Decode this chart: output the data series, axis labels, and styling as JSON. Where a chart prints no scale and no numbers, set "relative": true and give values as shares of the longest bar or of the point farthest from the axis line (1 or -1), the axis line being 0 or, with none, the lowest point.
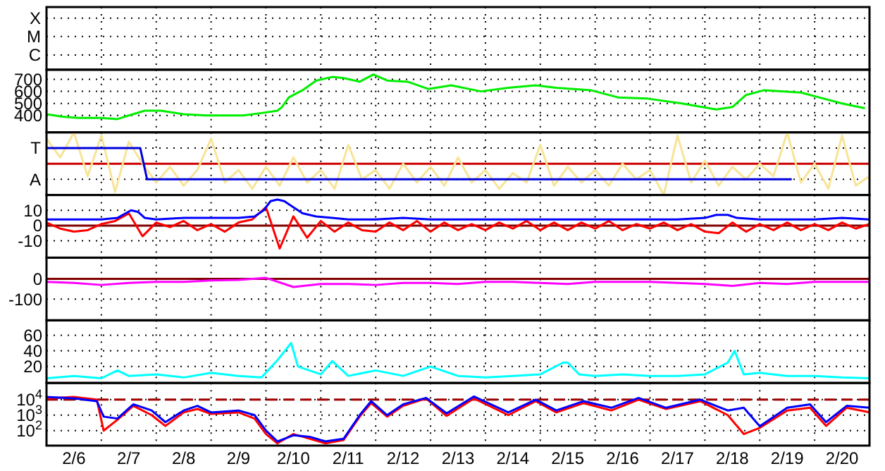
{
  "chart_data": [
    {
      "type": "other",
      "annotations": [
        "X",
        "M",
        "C"
      ]
    },
    {
      "type": "line",
      "xlim": [
        "--02-06T00:00",
        "--02-21T00:00"
      ],
      "xticks": [
        {
          "value": "--02-06",
          "label": null
        },
        {
          "value": "--02-07",
          "label": null
        },
        {
          "value": "--02-08",
          "label": null
        },
        {
          "value": "--02-09",
          "label": null
        },
        {
          "value": "--02-10",
          "label": null
        },
        {
          "value": "--02-11",
          "label": null
        },
        {
          "value": "--02-12",
          "label": null
        },
        {
          "value": "--02-13",
          "label": null
        },
        {
          "value": "--02-14",
          "label": null
        },
        {
          "value": "--02-15",
          "label": null
        },
        {
          "value": "--02-16",
          "label": null
        },
        {
          "value": "--02-17",
          "label": null
        },
        {
          "value": "--02-18",
          "label": null
        },
        {
          "value": "--02-19",
          "label": null
        },
        {
          "value": "--02-20",
          "label": null
        },
        {
          "value": "--02-21",
          "label": null
        }
      ],
      "ylim": [
        260,
        780
      ],
      "yticks": [
        400,
        500,
        600,
        700
      ],
      "grid": true,
      "tick_labels": "y",
      "series": [
        {
          "color": "#00ee00",
          "x": [
            "--02-06T00:00",
            "--02-06T07:00",
            "--02-06T14:00",
            "--02-07T00:00",
            "--02-07T07:00",
            "--02-07T12:00",
            "--02-07T19:00",
            "--02-08T02:00",
            "--02-08T12:00",
            "--02-08T22:00",
            "--02-09T05:00",
            "--02-09T14:00",
            "--02-09T22:00",
            "--02-10T05:00",
            "--02-10T07:00",
            "--02-10T10:00",
            "--02-10T16:00",
            "--02-10T22:00",
            "--02-11T05:00",
            "--02-11T10:00",
            "--02-11T17:00",
            "--02-11T23:00",
            "--02-12T05:00",
            "--02-12T14:00",
            "--02-12T23:00",
            "--02-13T09:00",
            "--02-13T22:00",
            "--02-14T10:00",
            "--02-14T22:00",
            "--02-15T07:00",
            "--02-15T22:00",
            "--02-16T10:00",
            "--02-16T23:00",
            "--02-17T14:00",
            "--02-18T05:00",
            "--02-18T12:00",
            "--02-18T18:00",
            "--02-19T02:00",
            "--02-19T18:00",
            "--02-20T02:00",
            "--02-20T12:00",
            "--02-20T22:00"
          ],
          "values": [
            410,
            390,
            380,
            380,
            370,
            400,
            440,
            440,
            410,
            400,
            400,
            400,
            420,
            440,
            470,
            550,
            610,
            690,
            720,
            710,
            680,
            740,
            690,
            680,
            620,
            650,
            600,
            630,
            650,
            630,
            610,
            550,
            540,
            500,
            450,
            470,
            570,
            610,
            590,
            550,
            500,
            460
          ]
        }
      ]
    },
    {
      "type": "line",
      "relative": true,
      "xlim": [
        "--02-06T00:00",
        "--02-21T00:00"
      ],
      "xticks": [
        {
          "value": "--02-06",
          "label": null
        },
        {
          "value": "--02-07",
          "label": null
        },
        {
          "value": "--02-08",
          "label": null
        },
        {
          "value": "--02-09",
          "label": null
        },
        {
          "value": "--02-10",
          "label": null
        },
        {
          "value": "--02-11",
          "label": null
        },
        {
          "value": "--02-12",
          "label": null
        },
        {
          "value": "--02-13",
          "label": null
        },
        {
          "value": "--02-14",
          "label": null
        },
        {
          "value": "--02-15",
          "label": null
        },
        {
          "value": "--02-16",
          "label": null
        },
        {
          "value": "--02-17",
          "label": null
        },
        {
          "value": "--02-18",
          "label": null
        },
        {
          "value": "--02-19",
          "label": null
        },
        {
          "value": "--02-20",
          "label": null
        },
        {
          "value": "--02-21",
          "label": null
        }
      ],
      "annotations": [
        "T",
        "A"
      ],
      "grid": true,
      "tick_labels": false,
      "ref_lines": [
        {
          "axis": "y",
          "value": 0.5,
          "color": "#cc0000",
          "line_style": "solid"
        }
      ],
      "series": [
        {
          "color": "#f8e496",
          "x": [
            "--02-06T00:00",
            "--02-06T06:00",
            "--02-06T12:00",
            "--02-06T18:00",
            "--02-07T00:00",
            "--02-07T06:00",
            "--02-07T12:00",
            "--02-07T18:00",
            "--02-08T00:00",
            "--02-08T06:00",
            "--02-08T12:00",
            "--02-08T18:00",
            "--02-09T00:00",
            "--02-09T06:00",
            "--02-09T12:00",
            "--02-09T18:00",
            "--02-10T00:00",
            "--02-10T06:00",
            "--02-10T12:00",
            "--02-10T18:00",
            "--02-11T00:00",
            "--02-11T06:00",
            "--02-11T12:00",
            "--02-11T18:00",
            "--02-12T00:00",
            "--02-12T06:00",
            "--02-12T12:00",
            "--02-12T18:00",
            "--02-13T00:00",
            "--02-13T06:00",
            "--02-13T12:00",
            "--02-13T18:00",
            "--02-14T00:00",
            "--02-14T06:00",
            "--02-14T12:00",
            "--02-14T18:00",
            "--02-15T00:00",
            "--02-15T06:00",
            "--02-15T12:00",
            "--02-15T18:00",
            "--02-16T00:00",
            "--02-16T06:00",
            "--02-16T12:00",
            "--02-16T18:00",
            "--02-17T00:00",
            "--02-17T06:00",
            "--02-17T12:00",
            "--02-17T18:00",
            "--02-18T00:00",
            "--02-18T06:00",
            "--02-18T12:00",
            "--02-18T18:00",
            "--02-19T00:00",
            "--02-19T06:00",
            "--02-19T12:00",
            "--02-19T18:00",
            "--02-20T00:00",
            "--02-20T06:00",
            "--02-20T12:00",
            "--02-20T18:00",
            "--02-21T00:00"
          ],
          "values": [
            0.9,
            0.6,
            1,
            0.3,
            0.95,
            0.05,
            0.85,
            0.5,
            0.2,
            0.45,
            0.15,
            0.4,
            0.9,
            0.2,
            0.4,
            0.1,
            0.45,
            0.15,
            0.6,
            0.2,
            0.4,
            0.1,
            0.8,
            0.25,
            0.4,
            0.1,
            0.5,
            0.2,
            0.45,
            0.15,
            0.6,
            0.2,
            0.4,
            0.1,
            0.35,
            0.2,
            0.8,
            0.15,
            0.45,
            0.2,
            0.4,
            0.15,
            0.5,
            0.25,
            0.4,
            0,
            0.95,
            0.2,
            0.55,
            0.15,
            0.45,
            0.25,
            0.5,
            0.3,
            1,
            0.2,
            0.5,
            0.1,
            0.95,
            0.15,
            0.3
          ]
        },
        {
          "color": "#0000dd",
          "x": [
            "--02-06T00:00",
            "--02-07T17:00",
            "--02-07T20:00",
            "--02-19T14:00"
          ],
          "values": [
            0.75,
            0.75,
            0.25,
            0.25
          ]
        }
      ]
    },
    {
      "type": "line",
      "xlim": [
        "--02-06T00:00",
        "--02-21T00:00"
      ],
      "xticks": [
        {
          "value": "--02-06",
          "label": null
        },
        {
          "value": "--02-07",
          "label": null
        },
        {
          "value": "--02-08",
          "label": null
        },
        {
          "value": "--02-09",
          "label": null
        },
        {
          "value": "--02-10",
          "label": null
        },
        {
          "value": "--02-11",
          "label": null
        },
        {
          "value": "--02-12",
          "label": null
        },
        {
          "value": "--02-13",
          "label": null
        },
        {
          "value": "--02-14",
          "label": null
        },
        {
          "value": "--02-15",
          "label": null
        },
        {
          "value": "--02-16",
          "label": null
        },
        {
          "value": "--02-17",
          "label": null
        },
        {
          "value": "--02-18",
          "label": null
        },
        {
          "value": "--02-19",
          "label": null
        },
        {
          "value": "--02-20",
          "label": null
        },
        {
          "value": "--02-21",
          "label": null
        }
      ],
      "ylim": [
        -21,
        20
      ],
      "yticks": [
        -10,
        0,
        10
      ],
      "grid": true,
      "tick_labels": "y",
      "ref_lines": [
        {
          "axis": "y",
          "value": 0,
          "color": "#800000",
          "line_style": "solid"
        }
      ],
      "series": [
        {
          "color": "#ff0000",
          "x": [
            "--02-06T00:00",
            "--02-06T06:00",
            "--02-06T12:00",
            "--02-06T18:00",
            "--02-07T00:00",
            "--02-07T06:00",
            "--02-07T12:00",
            "--02-07T18:00",
            "--02-08T00:00",
            "--02-08T06:00",
            "--02-08T12:00",
            "--02-08T18:00",
            "--02-09T00:00",
            "--02-09T06:00",
            "--02-09T12:00",
            "--02-09T18:00",
            "--02-10T00:00",
            "--02-10T06:00",
            "--02-10T12:00",
            "--02-10T18:00",
            "--02-11T00:00",
            "--02-11T06:00",
            "--02-11T12:00",
            "--02-11T18:00",
            "--02-12T00:00",
            "--02-12T06:00",
            "--02-12T12:00",
            "--02-12T18:00",
            "--02-13T00:00",
            "--02-13T06:00",
            "--02-13T12:00",
            "--02-13T18:00",
            "--02-14T00:00",
            "--02-14T06:00",
            "--02-14T12:00",
            "--02-14T18:00",
            "--02-15T00:00",
            "--02-15T06:00",
            "--02-15T12:00",
            "--02-15T18:00",
            "--02-16T00:00",
            "--02-16T06:00",
            "--02-16T12:00",
            "--02-16T18:00",
            "--02-17T00:00",
            "--02-17T06:00",
            "--02-17T12:00",
            "--02-17T18:00",
            "--02-18T00:00",
            "--02-18T06:00",
            "--02-18T12:00",
            "--02-18T18:00",
            "--02-19T00:00",
            "--02-19T06:00",
            "--02-19T12:00",
            "--02-19T18:00",
            "--02-20T00:00",
            "--02-20T06:00",
            "--02-20T12:00",
            "--02-20T18:00",
            "--02-21T00:00"
          ],
          "values": [
            2,
            -2,
            -4,
            -3,
            1,
            3,
            8,
            -7,
            2,
            -1,
            3,
            -3,
            1,
            -4,
            2,
            4,
            12,
            -15,
            6,
            -8,
            3,
            -4,
            2,
            -3,
            -4,
            2,
            -3,
            3,
            -4,
            2,
            -3,
            1,
            -3,
            2,
            -2,
            3,
            -3,
            2,
            -3,
            2,
            -2,
            3,
            -3,
            1,
            -2,
            2,
            -3,
            1,
            -4,
            -5,
            2,
            -4,
            1,
            -3,
            2,
            -3,
            1,
            -3,
            2,
            -2,
            1
          ]
        },
        {
          "color": "#0000ff",
          "x": [
            "--02-06T00:00",
            "--02-06T12:00",
            "--02-07T00:00",
            "--02-07T07:00",
            "--02-07T13:00",
            "--02-07T16:00",
            "--02-07T19:00",
            "--02-08T00:00",
            "--02-08T12:00",
            "--02-09T00:00",
            "--02-09T12:00",
            "--02-09T19:00",
            "--02-09T23:00",
            "--02-10T02:00",
            "--02-10T05:00",
            "--02-10T08:00",
            "--02-10T12:00",
            "--02-10T16:00",
            "--02-10T22:00",
            "--02-11T05:00",
            "--02-11T12:00",
            "--02-12T00:00",
            "--02-12T12:00",
            "--02-13T00:00",
            "--02-13T12:00",
            "--02-14T00:00",
            "--02-14T12:00",
            "--02-15T00:00",
            "--02-15T12:00",
            "--02-16T00:00",
            "--02-16T12:00",
            "--02-17T00:00",
            "--02-17T12:00",
            "--02-18T00:00",
            "--02-18T05:00",
            "--02-18T10:00",
            "--02-18T14:00",
            "--02-19T00:00",
            "--02-19T12:00",
            "--02-20T00:00",
            "--02-20T12:00",
            "--02-21T00:00"
          ],
          "values": [
            4,
            4,
            4,
            5,
            10,
            9,
            5,
            4,
            5,
            5,
            5,
            6,
            10,
            16,
            17,
            16,
            12,
            8,
            6,
            5,
            4,
            4,
            5,
            4,
            4,
            4,
            4,
            4,
            4,
            4,
            4,
            4,
            4,
            5,
            7,
            7,
            5,
            4,
            4,
            4,
            5,
            4
          ]
        }
      ]
    },
    {
      "type": "line",
      "xlim": [
        "--02-06T00:00",
        "--02-21T00:00"
      ],
      "xticks": [
        {
          "value": "--02-06",
          "label": null
        },
        {
          "value": "--02-07",
          "label": null
        },
        {
          "value": "--02-08",
          "label": null
        },
        {
          "value": "--02-09",
          "label": null
        },
        {
          "value": "--02-10",
          "label": null
        },
        {
          "value": "--02-11",
          "label": null
        },
        {
          "value": "--02-12",
          "label": null
        },
        {
          "value": "--02-13",
          "label": null
        },
        {
          "value": "--02-14",
          "label": null
        },
        {
          "value": "--02-15",
          "label": null
        },
        {
          "value": "--02-16",
          "label": null
        },
        {
          "value": "--02-17",
          "label": null
        },
        {
          "value": "--02-18",
          "label": null
        },
        {
          "value": "--02-19",
          "label": null
        },
        {
          "value": "--02-20",
          "label": null
        },
        {
          "value": "--02-21",
          "label": null
        }
      ],
      "ylim": [
        -205,
        105
      ],
      "yticks": [
        -100,
        0
      ],
      "grid": true,
      "tick_labels": "y",
      "ref_lines": [
        {
          "axis": "y",
          "value": 0,
          "color": "#800000",
          "line_style": "solid"
        }
      ],
      "series": [
        {
          "color": "#ff00ff",
          "x": [
            "--02-06T00:00",
            "--02-06T12:00",
            "--02-07T00:00",
            "--02-07T12:00",
            "--02-08T00:00",
            "--02-08T12:00",
            "--02-09T00:00",
            "--02-09T12:00",
            "--02-10T00:00",
            "--02-10T12:00",
            "--02-11T00:00",
            "--02-11T12:00",
            "--02-12T00:00",
            "--02-12T12:00",
            "--02-13T00:00",
            "--02-13T12:00",
            "--02-14T00:00",
            "--02-14T12:00",
            "--02-15T00:00",
            "--02-15T12:00",
            "--02-16T00:00",
            "--02-16T12:00",
            "--02-17T00:00",
            "--02-17T12:00",
            "--02-18T00:00",
            "--02-18T12:00",
            "--02-19T00:00",
            "--02-19T12:00",
            "--02-20T00:00",
            "--02-20T12:00",
            "--02-21T00:00"
          ],
          "values": [
            -15,
            -20,
            -30,
            -20,
            -15,
            -15,
            -8,
            -5,
            5,
            -40,
            -25,
            -25,
            -30,
            -20,
            -20,
            -25,
            -15,
            -15,
            -20,
            -25,
            -15,
            -15,
            -15,
            -20,
            -25,
            -35,
            -20,
            -25,
            -15,
            -15,
            -15
          ]
        }
      ]
    },
    {
      "type": "line",
      "xlim": [
        "--02-06T00:00",
        "--02-21T00:00"
      ],
      "xticks": [
        {
          "value": "--02-06",
          "label": null
        },
        {
          "value": "--02-07",
          "label": null
        },
        {
          "value": "--02-08",
          "label": null
        },
        {
          "value": "--02-09",
          "label": null
        },
        {
          "value": "--02-10",
          "label": null
        },
        {
          "value": "--02-11",
          "label": null
        },
        {
          "value": "--02-12",
          "label": null
        },
        {
          "value": "--02-13",
          "label": null
        },
        {
          "value": "--02-14",
          "label": null
        },
        {
          "value": "--02-15",
          "label": null
        },
        {
          "value": "--02-16",
          "label": null
        },
        {
          "value": "--02-17",
          "label": null
        },
        {
          "value": "--02-18",
          "label": null
        },
        {
          "value": "--02-19",
          "label": null
        },
        {
          "value": "--02-20",
          "label": null
        },
        {
          "value": "--02-21",
          "label": null
        }
      ],
      "ylim": [
        -1,
        79
      ],
      "yticks": [
        20,
        40,
        60
      ],
      "grid": true,
      "tick_labels": "y",
      "series": [
        {
          "color": "#00ffff",
          "x": [
            "--02-06T00:00",
            "--02-06T12:00",
            "--02-07T00:00",
            "--02-07T07:00",
            "--02-07T12:00",
            "--02-08T00:00",
            "--02-08T12:00",
            "--02-09T00:00",
            "--02-09T12:00",
            "--02-09T22:00",
            "--02-10T05:00",
            "--02-10T11:00",
            "--02-10T14:00",
            "--02-11T00:00",
            "--02-11T05:00",
            "--02-11T12:00",
            "--02-12T00:00",
            "--02-12T12:00",
            "--02-13T00:00",
            "--02-13T12:00",
            "--02-14T00:00",
            "--02-14T12:00",
            "--02-15T00:00",
            "--02-15T10:00",
            "--02-15T12:00",
            "--02-15T17:00",
            "--02-16T00:00",
            "--02-16T12:00",
            "--02-17T00:00",
            "--02-17T12:00",
            "--02-18T00:00",
            "--02-18T10:00",
            "--02-18T13:00",
            "--02-18T17:00",
            "--02-19T00:00",
            "--02-19T12:00",
            "--02-20T00:00",
            "--02-20T12:00",
            "--02-21T00:00"
          ],
          "values": [
            5,
            8,
            5,
            15,
            8,
            10,
            6,
            12,
            8,
            6,
            28,
            50,
            20,
            10,
            27,
            8,
            15,
            8,
            20,
            8,
            6,
            8,
            10,
            25,
            25,
            10,
            8,
            10,
            8,
            8,
            10,
            25,
            40,
            10,
            12,
            8,
            8,
            6,
            5
          ]
        }
      ]
    },
    {
      "type": "line",
      "xlim": [
        "--02-06T00:00",
        "--02-21T00:00"
      ],
      "xticks": [
        {
          "value": "--02-06",
          "label": null
        },
        {
          "value": "--02-06T12:00",
          "label": "2/6"
        },
        {
          "value": "--02-07",
          "label": null
        },
        {
          "value": "--02-07T12:00",
          "label": "2/7"
        },
        {
          "value": "--02-08",
          "label": null
        },
        {
          "value": "--02-08T12:00",
          "label": "2/8"
        },
        {
          "value": "--02-09",
          "label": null
        },
        {
          "value": "--02-09T12:00",
          "label": "2/9"
        },
        {
          "value": "--02-10",
          "label": null
        },
        {
          "value": "--02-10T12:00",
          "label": "2/10"
        },
        {
          "value": "--02-11",
          "label": null
        },
        {
          "value": "--02-11T12:00",
          "label": "2/11"
        },
        {
          "value": "--02-12",
          "label": null
        },
        {
          "value": "--02-12T12:00",
          "label": "2/12"
        },
        {
          "value": "--02-13",
          "label": null
        },
        {
          "value": "--02-13T12:00",
          "label": "2/13"
        },
        {
          "value": "--02-14",
          "label": null
        },
        {
          "value": "--02-14T12:00",
          "label": "2/14"
        },
        {
          "value": "--02-15",
          "label": null
        },
        {
          "value": "--02-15T12:00",
          "label": "2/15"
        },
        {
          "value": "--02-16",
          "label": null
        },
        {
          "value": "--02-16T12:00",
          "label": "2/16"
        },
        {
          "value": "--02-17",
          "label": null
        },
        {
          "value": "--02-17T12:00",
          "label": "2/17"
        },
        {
          "value": "--02-18",
          "label": null
        },
        {
          "value": "--02-18T12:00",
          "label": "2/18"
        },
        {
          "value": "--02-19",
          "label": null
        },
        {
          "value": "--02-19T12:00",
          "label": "2/19"
        },
        {
          "value": "--02-20",
          "label": null
        },
        {
          "value": "--02-20T12:00",
          "label": "2/20"
        },
        {
          "value": "--02-21",
          "label": null
        }
      ],
      "log": true,
      "ylim": [
        10.7,
        120000
      ],
      "yticks": [
        {
          "value": 10000,
          "label": "10$^{4}$"
        },
        {
          "value": 1000,
          "label": "10$^{3}$"
        },
        {
          "value": 100,
          "label": "10$^{2}$"
        }
      ],
      "grid": true,
      "ref_lines": [
        {
          "axis": "y",
          "value": 10000,
          "color": "#a00000",
          "line_style": "dashed"
        }
      ],
      "x": [
        "--02-06T00:00",
        "--02-06T12:00",
        "--02-06T22:00",
        "--02-07T01:00",
        "--02-07T07:00",
        "--02-07T14:00",
        "--02-07T22:00",
        "--02-08T04:00",
        "--02-08T12:00",
        "--02-08T18:00",
        "--02-09T00:00",
        "--02-09T12:00",
        "--02-09T19:00",
        "--02-10T00:00",
        "--02-10T05:00",
        "--02-10T12:00",
        "--02-10T19:00",
        "--02-11T02:00",
        "--02-11T10:00",
        "--02-11T17:00",
        "--02-11T22:00",
        "--02-12T05:00",
        "--02-12T12:00",
        "--02-12T22:00",
        "--02-13T07:00",
        "--02-13T19:00",
        "--02-14T10:00",
        "--02-14T22:00",
        "--02-15T07:00",
        "--02-15T19:00",
        "--02-16T07:00",
        "--02-16T19:00",
        "--02-17T07:00",
        "--02-17T22:00",
        "--02-18T10:00",
        "--02-18T17:00",
        "--02-19T00:00",
        "--02-19T12:00",
        "--02-19T22:00",
        "--02-20T05:00",
        "--02-20T14:00",
        "--02-21T00:00"
      ],
      "series": [
        {
          "color": "#ff0000",
          "values": [
            12000,
            15000,
            10000,
            100,
            500,
            4000,
            1000,
            200,
            1500,
            2500,
            1200,
            1500,
            600,
            60,
            15,
            60,
            30,
            15,
            25,
            800,
            6000,
            800,
            4000,
            12000,
            900,
            12000,
            1000,
            8000,
            1500,
            6000,
            2000,
            10000,
            2500,
            8000,
            1000,
            60,
            150,
            2000,
            3000,
            200,
            3000,
            1500
          ]
        },
        {
          "color": "#0000ff",
          "values": [
            15000,
            12000,
            8000,
            800,
            600,
            5000,
            2000,
            350,
            2000,
            4000,
            1500,
            2000,
            1000,
            100,
            20,
            50,
            40,
            20,
            30,
            1000,
            8000,
            1000,
            5000,
            13000,
            1300,
            16000,
            1500,
            10000,
            2000,
            8000,
            3000,
            13000,
            3000,
            10000,
            2000,
            3000,
            190,
            3000,
            5000,
            350,
            4000,
            3000
          ]
        }
      ]
    }
  ]
}
